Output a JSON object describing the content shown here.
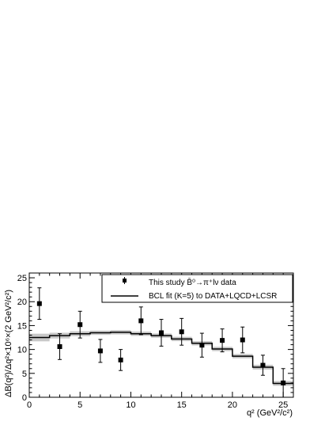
{
  "chart_data": {
    "type": "scatter",
    "xlabel": "q² (GeV²/c²)",
    "ylabel": "ΔB(q²)/Δq²×10⁶×(2 GeV²/c²)",
    "xlim": [
      0,
      26
    ],
    "ylim": [
      0,
      26
    ],
    "x_ticks": [
      0,
      5,
      10,
      15,
      20,
      25
    ],
    "y_ticks": [
      0,
      5,
      10,
      15,
      20,
      25
    ],
    "grid": false,
    "legend_position": "top-right",
    "series": [
      {
        "name": "This study B̄⁰→π⁺lν data",
        "kind": "points_with_errors",
        "color": "#000000",
        "points": [
          {
            "x": 1,
            "y": 19.6,
            "err": 3.3
          },
          {
            "x": 3,
            "y": 10.6,
            "err": 2.7
          },
          {
            "x": 5,
            "y": 15.2,
            "err": 2.8
          },
          {
            "x": 7,
            "y": 9.7,
            "err": 2.4
          },
          {
            "x": 9,
            "y": 7.8,
            "err": 2.2
          },
          {
            "x": 11,
            "y": 16.0,
            "err": 2.9
          },
          {
            "x": 13,
            "y": 13.5,
            "err": 2.8
          },
          {
            "x": 15,
            "y": 13.7,
            "err": 2.8
          },
          {
            "x": 17,
            "y": 10.9,
            "err": 2.5
          },
          {
            "x": 19,
            "y": 11.9,
            "err": 2.4
          },
          {
            "x": 21,
            "y": 12.0,
            "err": 2.7
          },
          {
            "x": 23,
            "y": 6.7,
            "err": 2.1
          },
          {
            "x": 25,
            "y": 3.0,
            "err": 3.0
          }
        ]
      },
      {
        "name": "BCL fit (K=5) to DATA+LQCD+LCSR",
        "kind": "step_with_band",
        "color": "#000000",
        "band_color": "#c8c8c8",
        "bins": [
          {
            "x0": 0,
            "x1": 2,
            "y": 12.5,
            "band": 0.8
          },
          {
            "x0": 2,
            "x1": 4,
            "y": 12.9,
            "band": 0.6
          },
          {
            "x0": 4,
            "x1": 6,
            "y": 13.3,
            "band": 0.5
          },
          {
            "x0": 6,
            "x1": 8,
            "y": 13.5,
            "band": 0.45
          },
          {
            "x0": 8,
            "x1": 10,
            "y": 13.6,
            "band": 0.45
          },
          {
            "x0": 10,
            "x1": 12,
            "y": 13.3,
            "band": 0.45
          },
          {
            "x0": 12,
            "x1": 14,
            "y": 12.9,
            "band": 0.45
          },
          {
            "x0": 14,
            "x1": 16,
            "y": 12.2,
            "band": 0.45
          },
          {
            "x0": 16,
            "x1": 18,
            "y": 11.3,
            "band": 0.45
          },
          {
            "x0": 18,
            "x1": 20,
            "y": 10.1,
            "band": 0.45
          },
          {
            "x0": 20,
            "x1": 22,
            "y": 8.6,
            "band": 0.45
          },
          {
            "x0": 22,
            "x1": 24,
            "y": 6.3,
            "band": 0.5
          },
          {
            "x0": 24,
            "x1": 26,
            "y": 2.9,
            "band": 0.5
          }
        ]
      }
    ]
  }
}
